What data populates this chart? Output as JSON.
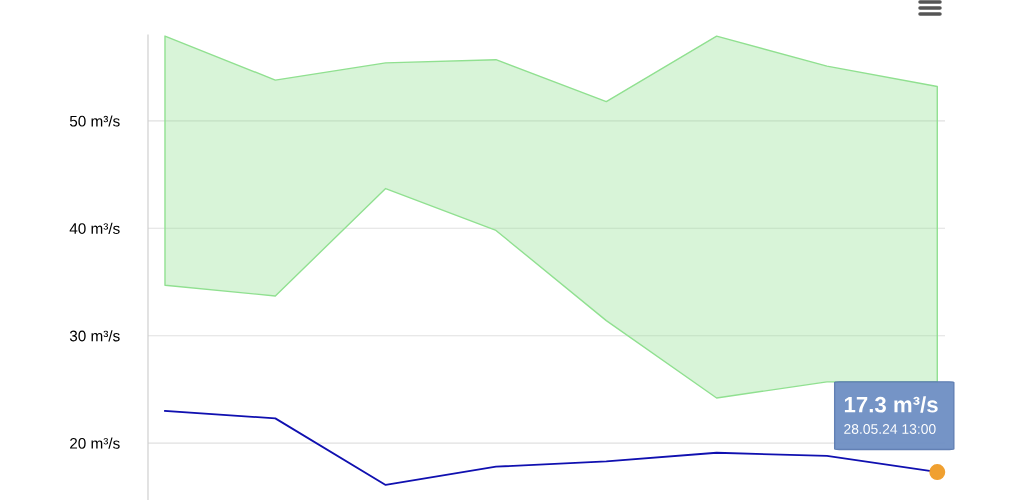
{
  "chart_data": {
    "type": "line",
    "categories": [
      null,
      null,
      null,
      null,
      null,
      null,
      null,
      null
    ],
    "series": [
      {
        "color": "#1010b0",
        "values": [
          23.0,
          22.3,
          16.1,
          17.8,
          18.3,
          19.1,
          18.8,
          17.3
        ],
        "lower": [
          34.7,
          33.7,
          43.7,
          39.8,
          31.4,
          24.2,
          25.7,
          25.7
        ],
        "upper": [
          57.9,
          53.8,
          55.4,
          55.7,
          51.8,
          57.9,
          55.1,
          53.2
        ]
      },
      {
        "type": "scatter",
        "color": "#f0a030",
        "values": [
          null,
          null,
          null,
          null,
          null,
          null,
          null,
          17.3
        ]
      }
    ],
    "ylim": [
      14.7,
      58
    ],
    "yticks": [
      {
        "value": 20,
        "label": "20 m³/s"
      },
      {
        "value": 30,
        "label": "30 m³/s"
      },
      {
        "value": 40,
        "label": "40 m³/s"
      },
      {
        "value": 50,
        "label": "50 m³/s"
      }
    ],
    "grid": "y",
    "legend": false,
    "annotations": [
      "17.3 m³/s",
      "28.05.24 13:00"
    ]
  }
}
